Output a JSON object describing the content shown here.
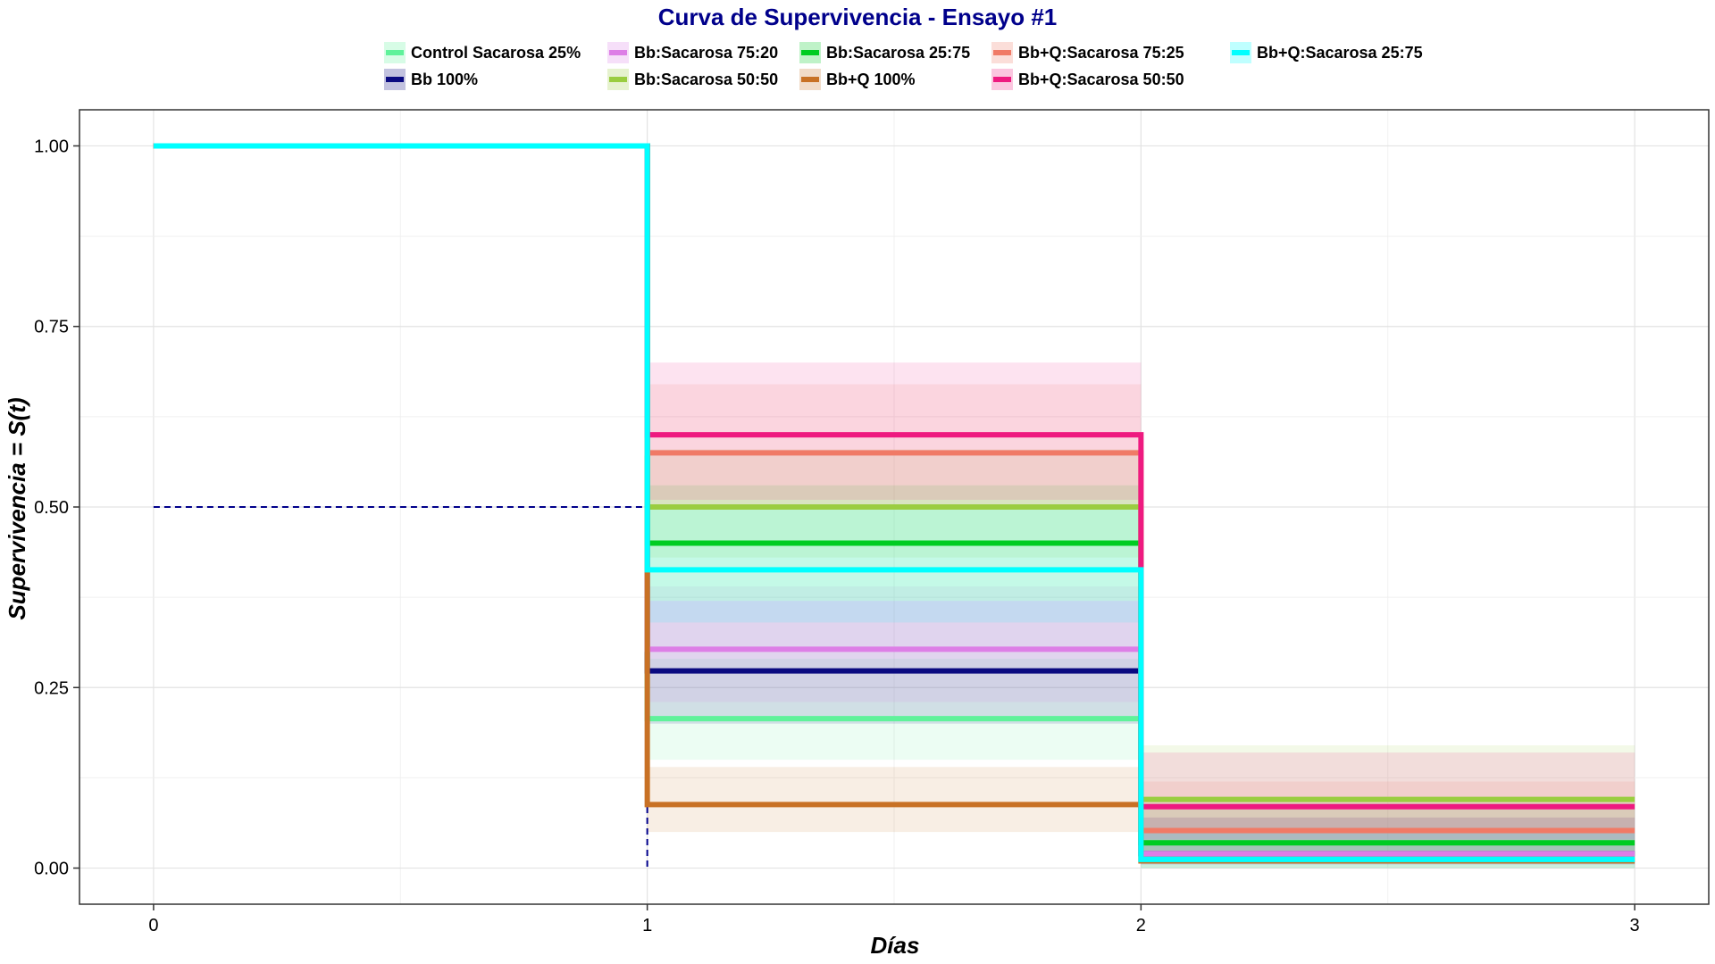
{
  "chart_data": {
    "type": "line",
    "title": "Curva de Supervivencia - Ensayo #1",
    "xlabel": "Días",
    "ylabel": "Supervivencia = S(t)",
    "xlim": [
      -0.15,
      3.15
    ],
    "ylim": [
      -0.05,
      1.05
    ],
    "x_ticks": [
      0,
      1,
      2,
      3
    ],
    "x_tick_labels": [
      "0",
      "1",
      "2",
      "3"
    ],
    "y_ticks": [
      0,
      0.25,
      0.5,
      0.75,
      1
    ],
    "y_tick_labels": [
      "0.00",
      "0.25",
      "0.50",
      "0.75",
      "1.00"
    ],
    "grid": true,
    "legend_position": "top",
    "median_line": {
      "y": 0.5,
      "x": 1,
      "color": "#00008b",
      "style": "dashed"
    },
    "x": [
      0,
      1,
      2,
      3
    ],
    "series": [
      {
        "name": "Control  Sacarosa 25%",
        "color": "#5ff29a",
        "values": [
          1,
          0.207,
          0.012,
          0.012
        ],
        "lower": [
          1,
          0.15,
          0.0,
          0.0
        ],
        "upper": [
          1,
          0.29,
          0.05,
          0.05
        ]
      },
      {
        "name": "Bb 100%",
        "color": "#0a0a80",
        "values": [
          1,
          0.273,
          0.02,
          0.02
        ],
        "lower": [
          1,
          0.2,
          0.005,
          0.005
        ],
        "upper": [
          1,
          0.37,
          0.07,
          0.07
        ]
      },
      {
        "name": "Bb:Sacarosa 75:20",
        "color": "#dd7ee6",
        "values": [
          1,
          0.303,
          0.02,
          0.02
        ],
        "lower": [
          1,
          0.23,
          0.005,
          0.005
        ],
        "upper": [
          1,
          0.39,
          0.07,
          0.07
        ]
      },
      {
        "name": "Bb:Sacarosa 50:50",
        "color": "#9acd40",
        "values": [
          1,
          0.5,
          0.095,
          0.095
        ],
        "lower": [
          1,
          0.43,
          0.05,
          0.05
        ],
        "upper": [
          1,
          0.58,
          0.17,
          0.17
        ]
      },
      {
        "name": "Bb:Sacarosa 25:75",
        "color": "#00cc22",
        "values": [
          1,
          0.45,
          0.035,
          0.035
        ],
        "lower": [
          1,
          0.37,
          0.01,
          0.01
        ],
        "upper": [
          1,
          0.53,
          0.09,
          0.09
        ]
      },
      {
        "name": "Bb+Q 100%",
        "color": "#c87125",
        "values": [
          1,
          0.088,
          0.01,
          0.01
        ],
        "lower": [
          1,
          0.05,
          0.0,
          0.0
        ],
        "upper": [
          1,
          0.14,
          0.04,
          0.04
        ]
      },
      {
        "name": "Bb+Q:Sacarosa 75:25",
        "color": "#f07a66",
        "values": [
          1,
          0.575,
          0.052,
          0.052
        ],
        "lower": [
          1,
          0.5,
          0.02,
          0.02
        ],
        "upper": [
          1,
          0.67,
          0.12,
          0.12
        ]
      },
      {
        "name": "Bb+Q:Sacarosa 50:50",
        "color": "#ee1a80",
        "values": [
          1,
          0.6,
          0.085,
          0.085
        ],
        "lower": [
          1,
          0.51,
          0.04,
          0.04
        ],
        "upper": [
          1,
          0.7,
          0.16,
          0.16
        ]
      },
      {
        "name": "Bb+Q:Sacarosa 25:75",
        "color": "#00ffff",
        "values": [
          1,
          0.413,
          0.012,
          0.012
        ],
        "lower": [
          1,
          0.34,
          0.0,
          0.0
        ],
        "upper": [
          1,
          0.5,
          0.05,
          0.05
        ]
      }
    ]
  }
}
